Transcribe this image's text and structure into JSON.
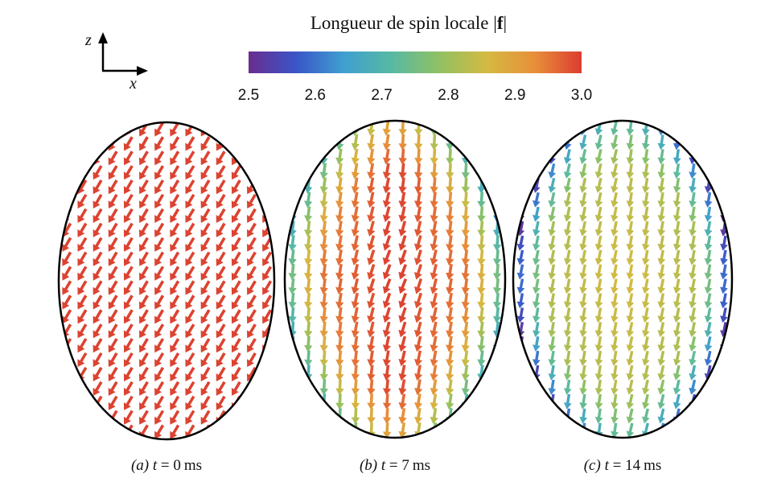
{
  "colorbar": {
    "title_text": "Longueur de spin locale |",
    "title_bold": "f",
    "title_end": "|",
    "ticks": [
      "2.5",
      "2.6",
      "2.7",
      "2.8",
      "2.9",
      "3.0"
    ],
    "range": [
      2.5,
      3.0
    ],
    "colormap": [
      "#6b2d8f",
      "#3a55c8",
      "#3f9fd0",
      "#57b9a4",
      "#8fc163",
      "#d4ba42",
      "#e8903a",
      "#db3d30"
    ]
  },
  "axes_indicator": {
    "vertical": "z",
    "horizontal": "x"
  },
  "chart_data": [
    {
      "type": "vector-field",
      "caption_prefix": "(a) ",
      "caption_var": "t",
      "caption_eq": " = ",
      "caption_value": "0",
      "caption_unit": "ms",
      "value_range": [
        2.99,
        3.0
      ],
      "dominant_color": "#db3d30",
      "arrow_direction": "down-left"
    },
    {
      "type": "vector-field",
      "caption_prefix": "(b) ",
      "caption_var": "t",
      "caption_eq": " = ",
      "caption_value": "7",
      "caption_unit": "ms",
      "value_range": [
        2.6,
        3.0
      ],
      "dominant_color": "#e8903a",
      "arrow_direction": "down-left"
    },
    {
      "type": "vector-field",
      "caption_prefix": "(c) ",
      "caption_var": "t",
      "caption_eq": " = ",
      "caption_value": "14",
      "caption_unit": "ms",
      "value_range": [
        2.5,
        2.9
      ],
      "dominant_color": "#d4ba42",
      "arrow_direction": "down"
    }
  ]
}
